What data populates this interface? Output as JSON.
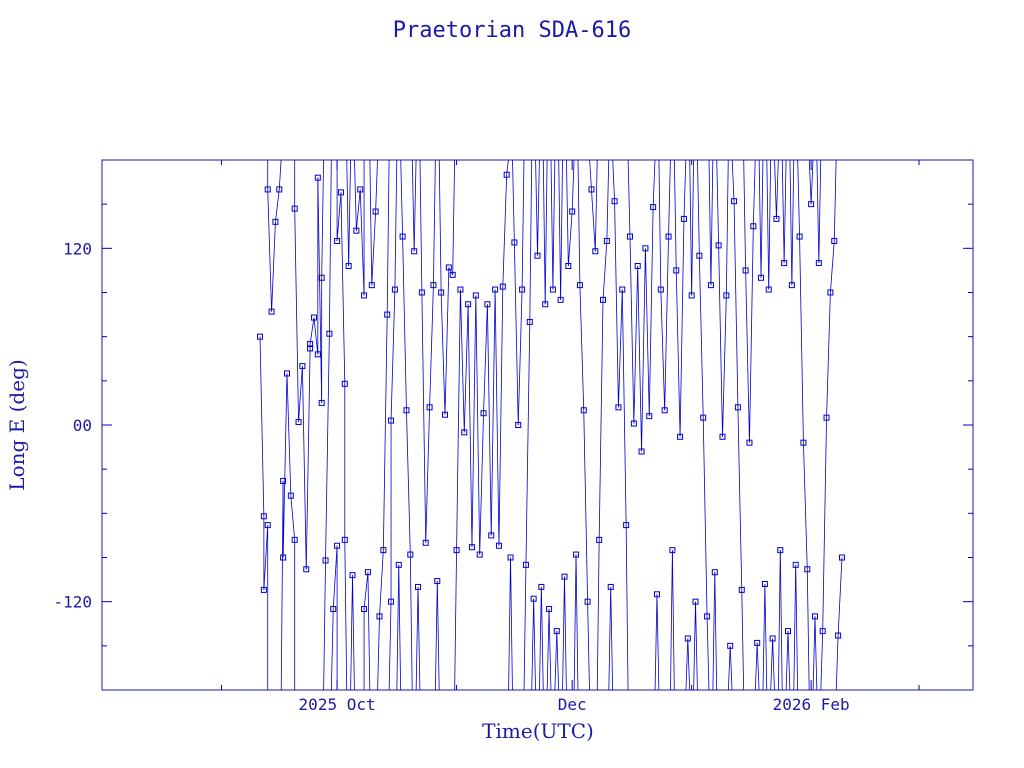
{
  "chart_data": {
    "type": "scatter",
    "title": "Praetorian SDA-616",
    "xlabel": "Time(UTC)",
    "ylabel": "Long E (deg)",
    "x_ticks": [
      {
        "date": "2025-10-01",
        "label": "2025 Oct"
      },
      {
        "date": "2025-12-01",
        "label": "Dec"
      },
      {
        "date": "2026-02-01",
        "label": "2026 Feb"
      }
    ],
    "xlim": [
      "2025-08-01",
      "2026-03-15"
    ],
    "y_ticks": [
      {
        "value": 120,
        "label": "120"
      },
      {
        "value": 0,
        "label": "00"
      },
      {
        "value": -120,
        "label": "-120"
      }
    ],
    "ylim": [
      -180,
      180
    ],
    "grid": false,
    "marker": "square",
    "line_connected": true,
    "color": "#0000cc",
    "series": [
      {
        "values": [
          [
            "2025-09-11",
            60
          ],
          [
            "2025-09-12",
            -62
          ],
          [
            "2025-09-12",
            -112
          ],
          [
            "2025-09-13",
            -68
          ],
          [
            "2025-09-13",
            160
          ],
          [
            "2025-09-14",
            77
          ],
          [
            "2025-09-15",
            138
          ],
          [
            "2025-09-16",
            160
          ],
          [
            "2025-09-17",
            -38
          ],
          [
            "2025-09-17",
            -90
          ],
          [
            "2025-09-18",
            35
          ],
          [
            "2025-09-19",
            -48
          ],
          [
            "2025-09-20",
            -78
          ],
          [
            "2025-09-20",
            147
          ],
          [
            "2025-09-21",
            2
          ],
          [
            "2025-09-22",
            40
          ],
          [
            "2025-09-23",
            -98
          ],
          [
            "2025-09-24",
            52
          ],
          [
            "2025-09-24",
            55
          ],
          [
            "2025-09-25",
            73
          ],
          [
            "2025-09-26",
            48
          ],
          [
            "2025-09-26",
            168
          ],
          [
            "2025-09-27",
            15
          ],
          [
            "2025-09-27",
            100
          ],
          [
            "2025-09-28",
            -92
          ],
          [
            "2025-09-29",
            62
          ],
          [
            "2025-09-30",
            -125
          ],
          [
            "2025-10-01",
            -82
          ],
          [
            "2025-10-01",
            125
          ],
          [
            "2025-10-02",
            158
          ],
          [
            "2025-10-03",
            28
          ],
          [
            "2025-10-03",
            -78
          ],
          [
            "2025-10-04",
            108
          ],
          [
            "2025-10-05",
            -102
          ],
          [
            "2025-10-06",
            132
          ],
          [
            "2025-10-07",
            160
          ],
          [
            "2025-10-08",
            88
          ],
          [
            "2025-10-08",
            -125
          ],
          [
            "2025-10-09",
            -100
          ],
          [
            "2025-10-10",
            95
          ],
          [
            "2025-10-11",
            145
          ],
          [
            "2025-10-12",
            -130
          ],
          [
            "2025-10-13",
            -85
          ],
          [
            "2025-10-14",
            75
          ],
          [
            "2025-10-15",
            -120
          ],
          [
            "2025-10-15",
            3
          ],
          [
            "2025-10-16",
            92
          ],
          [
            "2025-10-17",
            -95
          ],
          [
            "2025-10-18",
            128
          ],
          [
            "2025-10-19",
            10
          ],
          [
            "2025-10-20",
            -88
          ],
          [
            "2025-10-21",
            118
          ],
          [
            "2025-10-22",
            -110
          ],
          [
            "2025-10-23",
            90
          ],
          [
            "2025-10-24",
            -80
          ],
          [
            "2025-10-25",
            12
          ],
          [
            "2025-10-26",
            95
          ],
          [
            "2025-10-27",
            -106
          ],
          [
            "2025-10-28",
            90
          ],
          [
            "2025-10-29",
            7
          ],
          [
            "2025-10-30",
            107
          ],
          [
            "2025-10-31",
            102
          ],
          [
            "2025-11-01",
            -85
          ],
          [
            "2025-11-02",
            92
          ],
          [
            "2025-11-03",
            -5
          ],
          [
            "2025-11-04",
            82
          ],
          [
            "2025-11-05",
            -83
          ],
          [
            "2025-11-06",
            88
          ],
          [
            "2025-11-07",
            -88
          ],
          [
            "2025-11-08",
            8
          ],
          [
            "2025-11-09",
            82
          ],
          [
            "2025-11-10",
            -75
          ],
          [
            "2025-11-11",
            92
          ],
          [
            "2025-11-12",
            -82
          ],
          [
            "2025-11-13",
            94
          ],
          [
            "2025-11-14",
            170
          ],
          [
            "2025-11-15",
            -90
          ],
          [
            "2025-11-16",
            124
          ],
          [
            "2025-11-17",
            0
          ],
          [
            "2025-11-18",
            92
          ],
          [
            "2025-11-19",
            -95
          ],
          [
            "2025-11-20",
            70
          ],
          [
            "2025-11-21",
            -118
          ],
          [
            "2025-11-22",
            115
          ],
          [
            "2025-11-23",
            -110
          ],
          [
            "2025-11-24",
            82
          ],
          [
            "2025-11-25",
            -125
          ],
          [
            "2025-11-26",
            92
          ],
          [
            "2025-11-27",
            -140
          ],
          [
            "2025-11-28",
            85
          ],
          [
            "2025-11-29",
            -103
          ],
          [
            "2025-11-30",
            108
          ],
          [
            "2025-12-01",
            145
          ],
          [
            "2025-12-02",
            -88
          ],
          [
            "2025-12-03",
            95
          ],
          [
            "2025-12-04",
            10
          ],
          [
            "2025-12-05",
            -120
          ],
          [
            "2025-12-06",
            160
          ],
          [
            "2025-12-07",
            118
          ],
          [
            "2025-12-08",
            -78
          ],
          [
            "2025-12-09",
            85
          ],
          [
            "2025-12-10",
            125
          ],
          [
            "2025-12-11",
            -110
          ],
          [
            "2025-12-12",
            152
          ],
          [
            "2025-12-13",
            12
          ],
          [
            "2025-12-14",
            92
          ],
          [
            "2025-12-15",
            -68
          ],
          [
            "2025-12-16",
            128
          ],
          [
            "2025-12-17",
            1
          ],
          [
            "2025-12-18",
            108
          ],
          [
            "2025-12-19",
            -18
          ],
          [
            "2025-12-20",
            120
          ],
          [
            "2025-12-21",
            6
          ],
          [
            "2025-12-22",
            148
          ],
          [
            "2025-12-23",
            -115
          ],
          [
            "2025-12-24",
            92
          ],
          [
            "2025-12-25",
            10
          ],
          [
            "2025-12-26",
            128
          ],
          [
            "2025-12-27",
            -85
          ],
          [
            "2025-12-28",
            105
          ],
          [
            "2025-12-29",
            -8
          ],
          [
            "2025-12-30",
            140
          ],
          [
            "2025-12-31",
            -145
          ],
          [
            "2026-01-01",
            88
          ],
          [
            "2026-01-02",
            -120
          ],
          [
            "2026-01-03",
            115
          ],
          [
            "2026-01-04",
            5
          ],
          [
            "2026-01-05",
            -130
          ],
          [
            "2026-01-06",
            95
          ],
          [
            "2026-01-07",
            -100
          ],
          [
            "2026-01-08",
            122
          ],
          [
            "2026-01-09",
            -8
          ],
          [
            "2026-01-10",
            88
          ],
          [
            "2026-01-11",
            -150
          ],
          [
            "2026-01-12",
            152
          ],
          [
            "2026-01-13",
            12
          ],
          [
            "2026-01-14",
            -112
          ],
          [
            "2026-01-15",
            105
          ],
          [
            "2026-01-16",
            -12
          ],
          [
            "2026-01-17",
            135
          ],
          [
            "2026-01-18",
            -148
          ],
          [
            "2026-01-19",
            100
          ],
          [
            "2026-01-20",
            -108
          ],
          [
            "2026-01-21",
            92
          ],
          [
            "2026-01-22",
            -145
          ],
          [
            "2026-01-23",
            140
          ],
          [
            "2026-01-24",
            -85
          ],
          [
            "2026-01-25",
            110
          ],
          [
            "2026-01-26",
            -140
          ],
          [
            "2026-01-27",
            95
          ],
          [
            "2026-01-28",
            -95
          ],
          [
            "2026-01-29",
            128
          ],
          [
            "2026-01-30",
            -12
          ],
          [
            "2026-01-31",
            -98
          ],
          [
            "2026-02-01",
            150
          ],
          [
            "2026-02-02",
            -130
          ],
          [
            "2026-02-03",
            110
          ],
          [
            "2026-02-04",
            -140
          ],
          [
            "2026-02-05",
            5
          ],
          [
            "2026-02-06",
            90
          ],
          [
            "2026-02-07",
            125
          ],
          [
            "2026-02-08",
            -143
          ],
          [
            "2026-02-09",
            -90
          ]
        ]
      }
    ]
  }
}
